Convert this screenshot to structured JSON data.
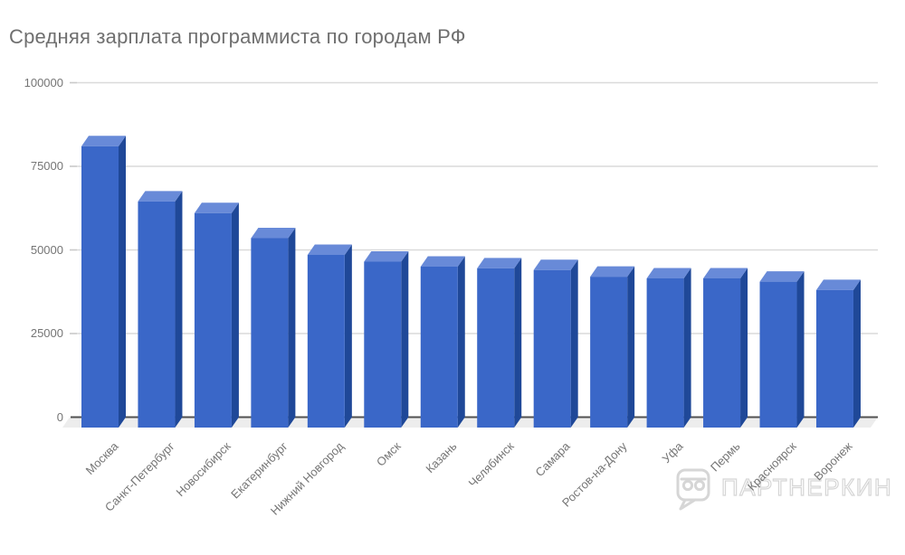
{
  "title": "Средняя зарплата программиста по городам РФ",
  "chart_data": {
    "type": "bar",
    "style": "3d-column",
    "title": "Средняя зарплата программиста по городам РФ",
    "categories": [
      "Москва",
      "Санкт-Петербург",
      "Новосибирск",
      "Екатеринбург",
      "Нижний Новгород",
      "Омск",
      "Казань",
      "Челябинск",
      "Самара",
      "Ростов-на-Дону",
      "Уфа",
      "Пермь",
      "Красноярск",
      "Воронеж"
    ],
    "values": [
      81000,
      64500,
      61000,
      53500,
      48500,
      46500,
      45000,
      44500,
      44000,
      42000,
      41500,
      41500,
      40500,
      38000
    ],
    "xlabel": "",
    "ylabel": "",
    "ylim": [
      0,
      100000
    ],
    "yticks": [
      0,
      25000,
      50000,
      75000,
      100000
    ],
    "grid": true,
    "legend": "none",
    "xlabel_rotation_deg": -45
  },
  "colors": {
    "bar_front": "#3a67c8",
    "bar_top": "#688ad8",
    "bar_side": "#1f4898",
    "gridline": "#dadada",
    "tick": "#c9c9c9",
    "baseline": "#515151",
    "floor": "#ededed",
    "title_text": "#6f6f6f",
    "axis_text": "#757575",
    "watermark": "#d6d6d6",
    "background": "#ffffff"
  },
  "watermark": {
    "text": "ПАРТНЕРКИН",
    "logo": "speech-bubble-glasses-icon"
  }
}
